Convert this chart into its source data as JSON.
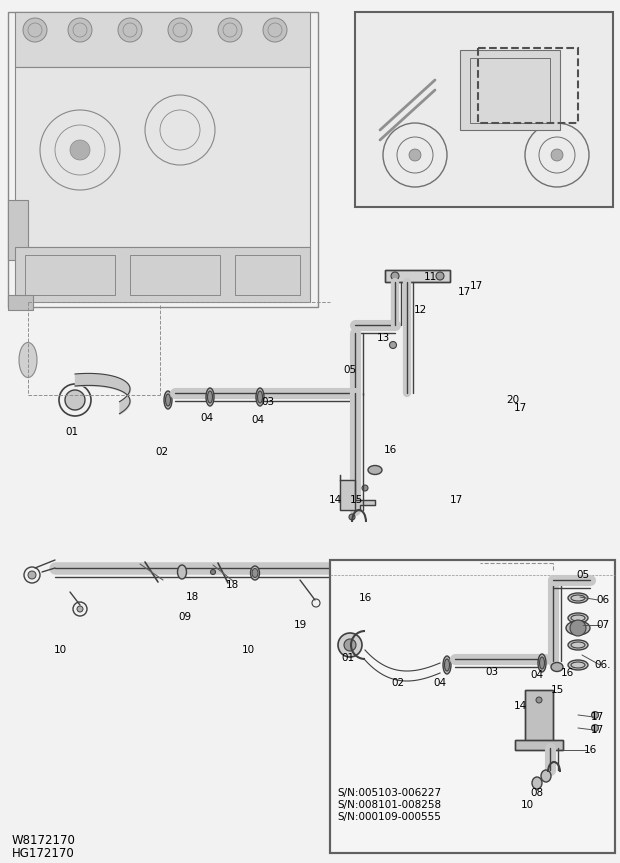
{
  "bg_color": "#f2f2f2",
  "watermark": "W8172170",
  "watermark2": "HG172170",
  "sn_lines": [
    "S/N:005103-006227",
    "S/N:008101-008258",
    "S/N:000109-000555"
  ],
  "line_color": "#404040",
  "label_fontsize": 7.5
}
